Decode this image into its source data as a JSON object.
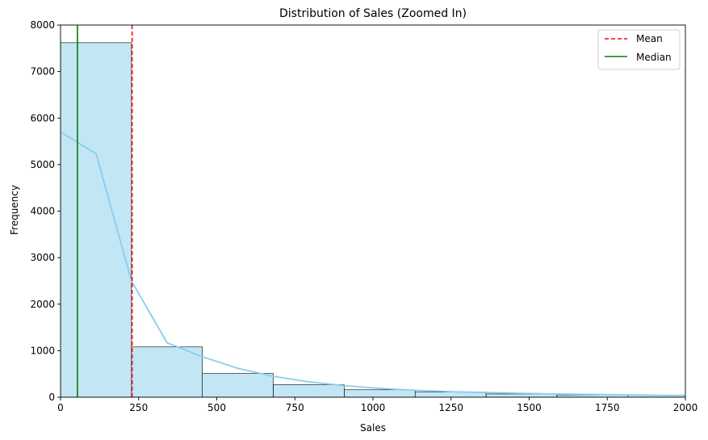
{
  "chart_data": {
    "type": "bar",
    "title": "Distribution of Sales (Zoomed In)",
    "xlabel": "Sales",
    "ylabel": "Frequency",
    "xlim": [
      0,
      2000
    ],
    "ylim": [
      0,
      8000
    ],
    "x_ticks": [
      0,
      250,
      500,
      750,
      1000,
      1250,
      1500,
      1750,
      2000
    ],
    "y_ticks": [
      0,
      1000,
      2000,
      3000,
      4000,
      5000,
      6000,
      7000,
      8000
    ],
    "bins": [
      {
        "start": 0,
        "end": 227,
        "count": 7620
      },
      {
        "start": 227,
        "end": 454,
        "count": 1080
      },
      {
        "start": 454,
        "end": 681,
        "count": 510
      },
      {
        "start": 681,
        "end": 908,
        "count": 270
      },
      {
        "start": 908,
        "end": 1135,
        "count": 160
      },
      {
        "start": 1135,
        "end": 1362,
        "count": 110
      },
      {
        "start": 1362,
        "end": 1589,
        "count": 70
      },
      {
        "start": 1589,
        "end": 1816,
        "count": 50
      },
      {
        "start": 1816,
        "end": 2043,
        "count": 40
      }
    ],
    "kde": {
      "x": [
        0,
        114,
        227,
        341,
        454,
        568,
        681,
        795,
        908,
        1022,
        1135,
        1249,
        1362,
        1476,
        1589,
        1703,
        1816,
        1930,
        2000
      ],
      "y": [
        5700,
        5230,
        2500,
        1170,
        870,
        620,
        450,
        330,
        250,
        190,
        150,
        120,
        100,
        85,
        70,
        60,
        50,
        42,
        38
      ]
    },
    "mean": 229,
    "median": 54,
    "legend": {
      "position": "top-right",
      "entries": [
        "Mean",
        "Median"
      ]
    },
    "colors": {
      "bar_fill": "#87ceeb",
      "bar_edge": "#000000",
      "kde": "#87ceeb",
      "mean": "#ff0000",
      "median": "#008000"
    }
  }
}
